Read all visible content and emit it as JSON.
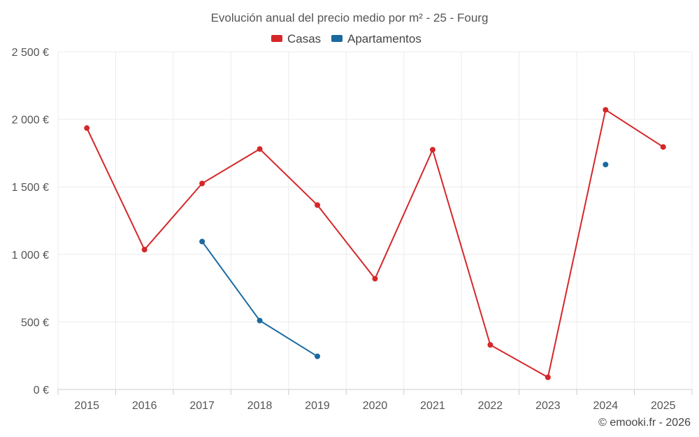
{
  "chart_data": {
    "type": "line",
    "title": "Evolución anual del precio medio por m² - 25 - Fourg",
    "xlabel": "",
    "ylabel": "",
    "categories": [
      "2015",
      "2016",
      "2017",
      "2018",
      "2019",
      "2020",
      "2021",
      "2022",
      "2023",
      "2024",
      "2025"
    ],
    "ylim": [
      0,
      2500
    ],
    "yticks": [
      0,
      500,
      1000,
      1500,
      2000,
      2500
    ],
    "ytick_labels": [
      "0 €",
      "500 €",
      "1 000 €",
      "1 500 €",
      "2 000 €",
      "2 500 €"
    ],
    "grid": true,
    "legend_position": "top-center",
    "series": [
      {
        "name": "Casas",
        "color": "#d62728",
        "values": [
          1935,
          1035,
          1525,
          1780,
          1365,
          820,
          1775,
          330,
          90,
          2070,
          1795
        ]
      },
      {
        "name": "Apartamentos",
        "color": "#1a6aa0",
        "values": [
          null,
          null,
          1095,
          510,
          245,
          null,
          null,
          null,
          null,
          1665,
          null
        ]
      }
    ]
  },
  "credit": "© emooki.fr - 2026"
}
